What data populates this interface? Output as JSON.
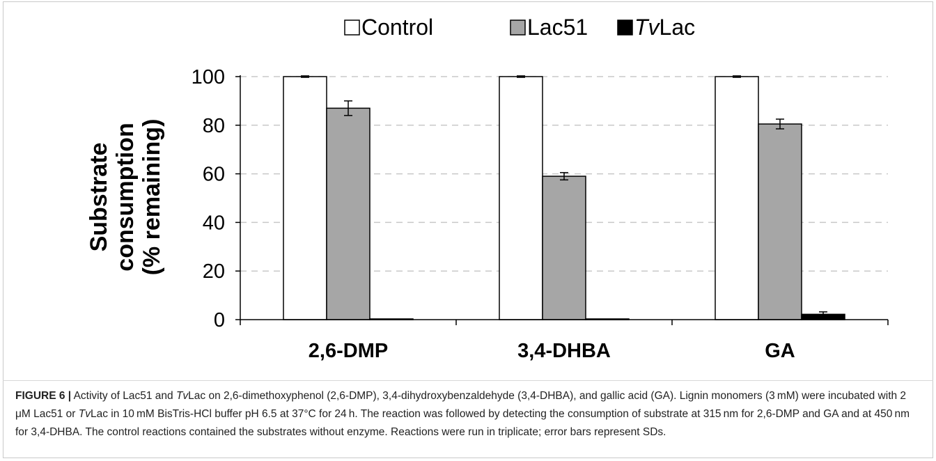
{
  "chart_data": {
    "type": "bar",
    "categories": [
      "2,6-DMP",
      "3,4-DHBA",
      "GA"
    ],
    "series": [
      {
        "name": "Control",
        "values": [
          100,
          100,
          100
        ],
        "errors": [
          0.3,
          0.3,
          0.3
        ],
        "color": "#ffffff"
      },
      {
        "name": "Lac51",
        "values": [
          87,
          59,
          80.5
        ],
        "errors": [
          3,
          1.5,
          2
        ],
        "color": "#a6a6a6"
      },
      {
        "name_parts": [
          "Tv",
          "Lac"
        ],
        "values": [
          0.3,
          0.3,
          2.2
        ],
        "errors": [
          0,
          0,
          1
        ],
        "color": "#000000"
      }
    ],
    "ylabel_lines": [
      "Substrate",
      "consumption",
      "(% remaining)"
    ],
    "yticks": [
      "0",
      "20",
      "40",
      "60",
      "80",
      "100"
    ],
    "ylim": [
      0,
      100
    ],
    "grid": "dashed horizontal",
    "legend_position": "top"
  },
  "caption": {
    "label": "FIGURE 6 |",
    "runs": [
      " Activity of Lac51 and ",
      "Tv",
      "Lac on 2,6-dimethoxyphenol (2,6-DMP), 3,4-dihydroxybenzaldehyde (3,4-DHBA), and gallic acid (GA). Lignin monomers (3 mM) were incubated with 2 μM Lac51 or ",
      "Tv",
      "Lac in 10 mM BisTris-HCl buffer pH 6.5 at 37°C for 24 h. The reaction was followed by detecting the consumption of substrate at 315 nm for 2,6-DMP and GA and at 450 nm for 3,4-DHBA. The control reactions contained the substrates without enzyme. Reactions were run in triplicate; error bars represent SDs."
    ]
  }
}
